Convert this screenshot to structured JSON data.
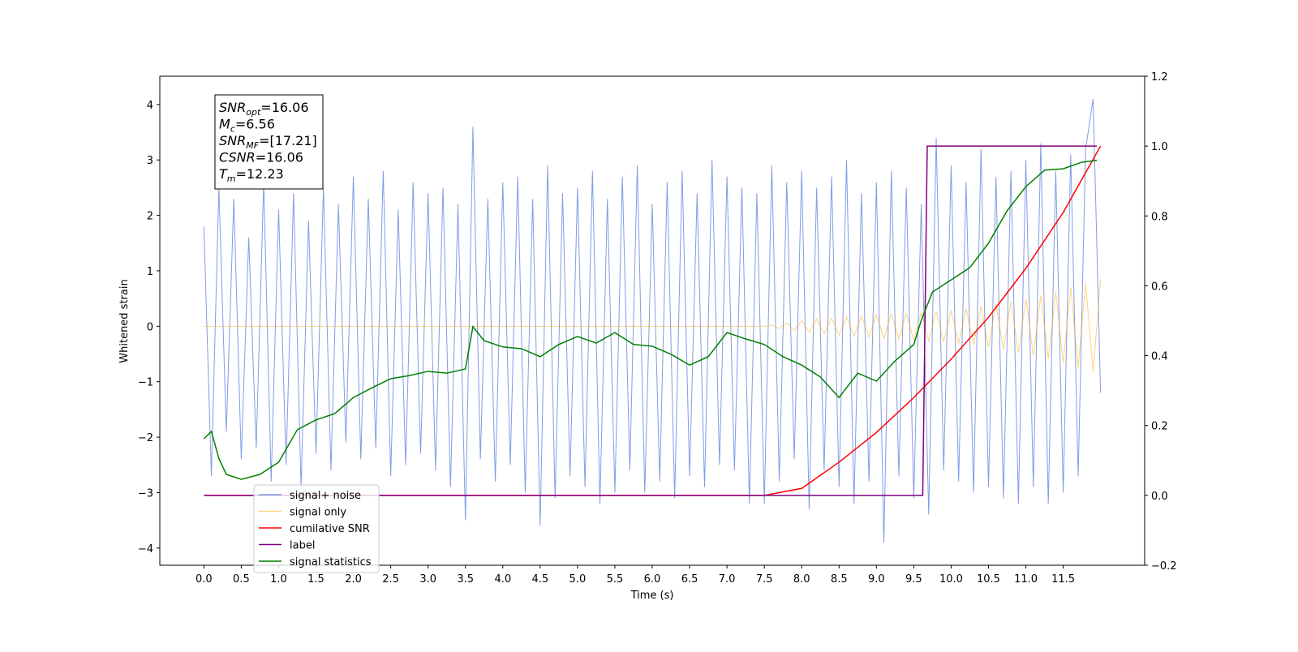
{
  "chart_data": {
    "type": "line",
    "xlabel": "Time (s)",
    "ylabel": "Whitened strain",
    "xlim": [
      -0.59,
      12.59
    ],
    "ylim": [
      -4.31,
      4.51
    ],
    "y2lim": [
      -0.2,
      1.2
    ],
    "xticks": [
      {
        "value": 0,
        "label": "0.0"
      },
      0.5,
      {
        "value": 1,
        "label": "1.0"
      },
      1.5,
      {
        "value": 2,
        "label": "2.0"
      },
      2.5,
      {
        "value": 3,
        "label": "3.0"
      },
      3.5,
      {
        "value": 4,
        "label": "4.0"
      },
      4.5,
      {
        "value": 5,
        "label": "5.0"
      },
      5.5,
      {
        "value": 6,
        "label": "6.0"
      },
      6.5,
      {
        "value": 7,
        "label": "7.0"
      },
      7.5,
      {
        "value": 8,
        "label": "8.0"
      },
      8.5,
      {
        "value": 9,
        "label": "9.0"
      },
      9.5,
      {
        "value": 10,
        "label": "10.0"
      },
      10.5,
      {
        "value": 11,
        "label": "11.0"
      },
      11.5
    ],
    "yticks": [
      {
        "value": -4,
        "label": "−4"
      },
      {
        "value": -3,
        "label": "−3"
      },
      {
        "value": -2,
        "label": "−2"
      },
      {
        "value": -1,
        "label": "−1"
      },
      0,
      1,
      2,
      3,
      4
    ],
    "y2ticks": [
      {
        "value": -0.2,
        "label": "−0.2"
      },
      {
        "value": 0,
        "label": "0.0"
      },
      0.2,
      0.4,
      0.6,
      0.8,
      {
        "value": 1,
        "label": "1.0"
      },
      1.2
    ],
    "legend_loc": "lower left",
    "annotation": [
      {
        "text": "SNR",
        "sub": "opt",
        "suffix": "=16.06"
      },
      {
        "text": "M",
        "sub": "c",
        "suffix": "=6.56"
      },
      {
        "text": "SNR",
        "sub": "MF",
        "suffix": "=[17.21]"
      },
      {
        "text": "CSNR",
        "suffix": "=16.06"
      },
      {
        "text": "T",
        "sub": "m",
        "suffix": "=12.23"
      }
    ],
    "x": [
      0,
      0.1,
      0.2,
      0.3,
      0.4,
      0.5,
      0.6,
      0.7,
      0.8,
      0.9,
      1,
      1.1,
      1.2,
      1.3,
      1.4,
      1.5,
      1.6,
      1.7,
      1.8,
      1.9,
      2,
      2.1,
      2.2,
      2.3,
      2.4,
      2.5,
      2.6,
      2.7,
      2.8,
      2.9,
      3,
      3.1,
      3.2,
      3.3,
      3.4,
      3.5,
      3.6,
      3.7,
      3.8,
      3.9,
      4,
      4.1,
      4.2,
      4.3,
      4.4,
      4.5,
      4.6,
      4.7,
      4.8,
      4.9,
      5,
      5.1,
      5.2,
      5.3,
      5.4,
      5.5,
      5.6,
      5.7,
      5.8,
      5.9,
      6,
      6.1,
      6.2,
      6.3,
      6.4,
      6.5,
      6.6,
      6.7,
      6.8,
      6.9,
      7,
      7.1,
      7.2,
      7.3,
      7.4,
      7.5,
      7.6,
      7.7,
      7.8,
      7.9,
      8,
      8.1,
      8.2,
      8.3,
      8.4,
      8.5,
      8.6,
      8.7,
      8.8,
      8.9,
      9,
      9.1,
      9.2,
      9.3,
      9.4,
      9.5,
      9.6,
      9.7,
      9.8,
      9.9,
      10,
      10.1,
      10.2,
      10.3,
      10.4,
      10.5,
      10.6,
      10.7,
      10.8,
      10.9,
      11,
      11.1,
      11.2,
      11.3,
      11.4,
      11.5,
      11.6,
      11.7,
      11.8,
      11.9,
      12
    ],
    "series": [
      {
        "name": "signal+ noise",
        "color": "#7b96e6",
        "values": [
          1.8,
          -2.7,
          2.5,
          -1.9,
          2.3,
          -2.4,
          1.6,
          -2.2,
          2.6,
          -2.8,
          2.1,
          -2.5,
          2.4,
          -2.9,
          1.9,
          -2.3,
          2.5,
          -2.6,
          2.2,
          -2.1,
          2.7,
          -2.4,
          2.3,
          -2.2,
          2.8,
          -2.7,
          2.1,
          -2.5,
          2.6,
          -2.3,
          2.4,
          -2.6,
          2.5,
          -2.9,
          2.2,
          -3.5,
          3.6,
          -2.4,
          2.3,
          -2.8,
          2.6,
          -2.5,
          2.7,
          -3.0,
          2.3,
          -3.6,
          2.9,
          -3.1,
          2.4,
          -2.7,
          2.5,
          -2.9,
          2.8,
          -3.2,
          2.3,
          -3.0,
          2.7,
          -2.6,
          2.9,
          -3.0,
          2.2,
          -2.8,
          2.6,
          -3.1,
          2.8,
          -2.7,
          2.4,
          -2.9,
          3.0,
          -2.5,
          2.7,
          -2.6,
          2.5,
          -3.2,
          2.4,
          -3.2,
          2.9,
          -2.8,
          2.6,
          -2.4,
          2.8,
          -3.3,
          2.5,
          -2.6,
          2.7,
          -2.9,
          3.0,
          -3.2,
          2.4,
          -2.8,
          2.6,
          -3.9,
          2.8,
          -2.7,
          2.5,
          -3.1,
          2.2,
          -3.4,
          3.4,
          -2.6,
          2.9,
          -2.8,
          2.6,
          -3.0,
          3.2,
          -2.9,
          2.7,
          -3.1,
          2.8,
          -3.2,
          3.0,
          -2.9,
          3.3,
          -3.2,
          2.8,
          -3.0,
          3.1,
          -2.7,
          3.2,
          4.1,
          -1.2
        ]
      },
      {
        "name": "signal only",
        "color": "#ffa500",
        "values": [
          0,
          0,
          0,
          0,
          0,
          0,
          0,
          0,
          0,
          0,
          0,
          0,
          0,
          0,
          0,
          0,
          0,
          0,
          0,
          0,
          0,
          0,
          0,
          0,
          0,
          0,
          0,
          0,
          0,
          0,
          0,
          0,
          0,
          0,
          0,
          0,
          0,
          0,
          0,
          0,
          0,
          0,
          0,
          0,
          0,
          0,
          0,
          0,
          0,
          0,
          0,
          0,
          0,
          0,
          0,
          0,
          0,
          0,
          0,
          0,
          0,
          0,
          0,
          0,
          0,
          0,
          0,
          0,
          0,
          0,
          0,
          0,
          0,
          0,
          0,
          0,
          0.02,
          -0.04,
          0.06,
          -0.08,
          0.1,
          -0.11,
          0.13,
          -0.14,
          0.15,
          -0.16,
          0.17,
          -0.18,
          0.19,
          -0.2,
          0.21,
          -0.22,
          0.23,
          -0.23,
          0.24,
          -0.25,
          0.25,
          -0.26,
          0.27,
          -0.28,
          0.29,
          -0.31,
          0.32,
          -0.34,
          0.36,
          -0.38,
          0.4,
          -0.42,
          0.45,
          -0.48,
          0.5,
          -0.53,
          0.56,
          -0.59,
          0.62,
          -0.66,
          0.7,
          -0.74,
          0.78,
          -0.82,
          0.85
        ]
      },
      {
        "name": "cumilative SNR",
        "color": "red",
        "axis": "y2",
        "x": [
          0,
          7.5,
          8,
          8.5,
          9,
          9.5,
          10,
          10.5,
          11,
          11.5,
          12
        ],
        "values": [
          0,
          0,
          0.02,
          0.095,
          0.18,
          0.28,
          0.39,
          0.51,
          0.65,
          0.81,
          1.0
        ]
      },
      {
        "name": "label",
        "color": "purple",
        "axis": "y2",
        "x": [
          0,
          9.62,
          9.68,
          11.95
        ],
        "values": [
          0,
          0,
          1,
          1
        ]
      },
      {
        "name": "signal statistics",
        "color": "green",
        "axis": "y2",
        "x": [
          0,
          0.1,
          0.2,
          0.3,
          0.5,
          0.75,
          1,
          1.25,
          1.5,
          1.75,
          2,
          2.25,
          2.5,
          2.75,
          3,
          3.25,
          3.5,
          3.6,
          3.75,
          4,
          4.25,
          4.5,
          4.75,
          5,
          5.25,
          5.5,
          5.75,
          6,
          6.25,
          6.5,
          6.75,
          7,
          7.25,
          7.5,
          7.75,
          8,
          8.25,
          8.5,
          8.75,
          9,
          9.25,
          9.5,
          9.6,
          9.75,
          10,
          10.25,
          10.5,
          10.75,
          11,
          11.25,
          11.5,
          11.75,
          11.95
        ],
        "values": [
          0.162,
          0.183,
          0.106,
          0.06,
          0.046,
          0.06,
          0.095,
          0.188,
          0.216,
          0.234,
          0.28,
          0.308,
          0.334,
          0.343,
          0.355,
          0.35,
          0.362,
          0.483,
          0.443,
          0.425,
          0.42,
          0.397,
          0.432,
          0.455,
          0.436,
          0.466,
          0.432,
          0.427,
          0.404,
          0.373,
          0.397,
          0.466,
          0.448,
          0.432,
          0.397,
          0.373,
          0.339,
          0.28,
          0.35,
          0.327,
          0.385,
          0.432,
          0.501,
          0.582,
          0.617,
          0.652,
          0.722,
          0.815,
          0.884,
          0.931,
          0.935,
          0.954,
          0.959
        ]
      }
    ]
  }
}
